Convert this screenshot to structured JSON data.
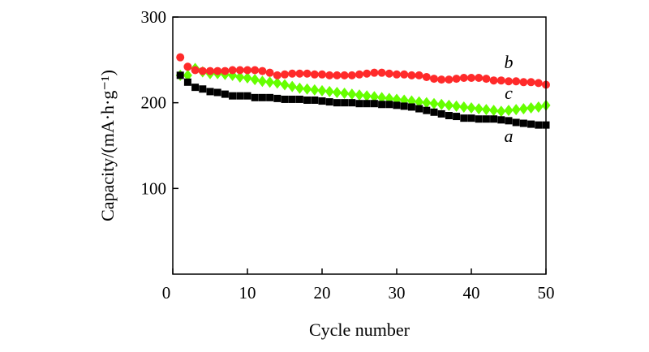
{
  "chart_data": {
    "type": "scatter",
    "xlabel": "Cycle number",
    "ylabel": "Capacity/(mA·h·g⁻¹)",
    "xlim": [
      0,
      50
    ],
    "ylim": [
      0,
      300
    ],
    "xticks": [
      0,
      10,
      20,
      30,
      40,
      50
    ],
    "yticks": [
      100,
      200,
      300
    ],
    "grid": false,
    "legend": "none",
    "x": [
      1,
      2,
      3,
      4,
      5,
      6,
      7,
      8,
      9,
      10,
      11,
      12,
      13,
      14,
      15,
      16,
      17,
      18,
      19,
      20,
      21,
      22,
      23,
      24,
      25,
      26,
      27,
      28,
      29,
      30,
      31,
      32,
      33,
      34,
      35,
      36,
      37,
      38,
      39,
      40,
      41,
      42,
      43,
      44,
      45,
      46,
      47,
      48,
      49,
      50
    ],
    "series": [
      {
        "name": "a",
        "marker": "square",
        "color": "#000000",
        "values": [
          232,
          224,
          218,
          216,
          213,
          212,
          210,
          208,
          208,
          208,
          206,
          206,
          206,
          205,
          204,
          204,
          204,
          203,
          203,
          202,
          201,
          200,
          200,
          200,
          199,
          199,
          199,
          198,
          198,
          197,
          196,
          195,
          193,
          191,
          189,
          187,
          185,
          184,
          182,
          182,
          181,
          181,
          181,
          180,
          179,
          177,
          176,
          175,
          174,
          174
        ]
      },
      {
        "name": "b",
        "marker": "circle",
        "color": "#ff2a2a",
        "values": [
          253,
          242,
          238,
          237,
          237,
          237,
          237,
          238,
          238,
          238,
          238,
          237,
          235,
          232,
          233,
          234,
          234,
          234,
          233,
          233,
          232,
          232,
          232,
          232,
          233,
          234,
          235,
          235,
          234,
          233,
          233,
          232,
          232,
          230,
          228,
          227,
          227,
          228,
          229,
          229,
          229,
          228,
          226,
          226,
          225,
          225,
          224,
          224,
          223,
          221
        ]
      },
      {
        "name": "c",
        "marker": "diamond",
        "color": "#66ff00",
        "values": [
          232,
          232,
          240,
          236,
          234,
          234,
          233,
          232,
          230,
          229,
          227,
          225,
          224,
          223,
          221,
          219,
          217,
          216,
          215,
          214,
          213,
          212,
          211,
          210,
          209,
          208,
          207,
          206,
          205,
          204,
          203,
          202,
          201,
          200,
          199,
          198,
          197,
          196,
          195,
          194,
          193,
          192,
          191,
          190,
          191,
          192,
          193,
          194,
          195,
          197
        ]
      }
    ]
  }
}
